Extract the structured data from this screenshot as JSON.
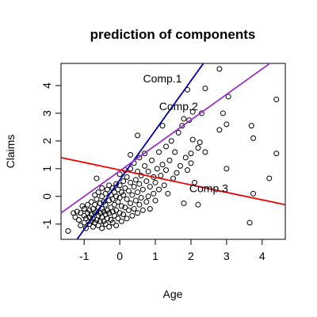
{
  "chart_data": {
    "type": "scatter",
    "title": "prediction of components",
    "xlabel": "Age",
    "ylabel": "Claims",
    "xlim": [
      -1.65,
      4.65
    ],
    "ylim": [
      -1.55,
      4.8
    ],
    "xticks": [
      "-1",
      "0",
      "1",
      "2",
      "3",
      "4"
    ],
    "yticks": [
      "-1",
      "0",
      "1",
      "2",
      "3",
      "4"
    ],
    "grid": false,
    "points": [
      [
        -1.45,
        -1.25
      ],
      [
        -1.3,
        -0.6
      ],
      [
        -1.25,
        -0.75
      ],
      [
        -1.2,
        -0.55
      ],
      [
        -1.15,
        -0.85
      ],
      [
        -1.1,
        -1.05
      ],
      [
        -1.1,
        -0.6
      ],
      [
        -1.05,
        -0.35
      ],
      [
        -1.0,
        -0.95
      ],
      [
        -1.0,
        -0.7
      ],
      [
        -1.0,
        -0.45
      ],
      [
        -0.95,
        -0.8
      ],
      [
        -0.95,
        -1.15
      ],
      [
        -0.9,
        -0.6
      ],
      [
        -0.9,
        -0.3
      ],
      [
        -0.85,
        -1.0
      ],
      [
        -0.85,
        -0.75
      ],
      [
        -0.85,
        -0.5
      ],
      [
        -0.8,
        -0.9
      ],
      [
        -0.8,
        -0.65
      ],
      [
        -0.8,
        -0.2
      ],
      [
        -0.75,
        -1.1
      ],
      [
        -0.75,
        -0.8
      ],
      [
        -0.75,
        -0.45
      ],
      [
        -0.7,
        -0.95
      ],
      [
        -0.7,
        -0.6
      ],
      [
        -0.7,
        -0.3
      ],
      [
        -0.7,
        0.05
      ],
      [
        -0.65,
        -0.85
      ],
      [
        -0.65,
        -0.55
      ],
      [
        -0.65,
        -0.1
      ],
      [
        -0.6,
        -1.05
      ],
      [
        -0.6,
        -0.7
      ],
      [
        -0.6,
        -0.4
      ],
      [
        -0.6,
        0.15
      ],
      [
        -0.55,
        -0.9
      ],
      [
        -0.55,
        -0.6
      ],
      [
        -0.55,
        -0.25
      ],
      [
        -0.5,
        -1.15
      ],
      [
        -0.5,
        -0.75
      ],
      [
        -0.5,
        -0.45
      ],
      [
        -0.5,
        0.0
      ],
      [
        -0.5,
        0.3
      ],
      [
        -0.45,
        -0.9
      ],
      [
        -0.45,
        -0.55
      ],
      [
        -0.45,
        -0.2
      ],
      [
        -0.4,
        -1.0
      ],
      [
        -0.4,
        -0.65
      ],
      [
        -0.4,
        -0.3
      ],
      [
        -0.4,
        0.1
      ],
      [
        -0.35,
        -0.8
      ],
      [
        -0.35,
        -0.5
      ],
      [
        -0.35,
        0.25
      ],
      [
        -0.3,
        -1.1
      ],
      [
        -0.3,
        -0.6
      ],
      [
        -0.3,
        -0.15
      ],
      [
        -0.3,
        0.4
      ],
      [
        -0.25,
        -0.85
      ],
      [
        -0.25,
        -0.4
      ],
      [
        -0.25,
        0.05
      ],
      [
        -0.2,
        -0.95
      ],
      [
        -0.2,
        -0.55
      ],
      [
        -0.2,
        -0.1
      ],
      [
        -0.2,
        0.3
      ],
      [
        -0.15,
        -0.7
      ],
      [
        -0.15,
        -0.3
      ],
      [
        -0.15,
        0.15
      ],
      [
        -0.1,
        -1.05
      ],
      [
        -0.1,
        -0.5
      ],
      [
        -0.1,
        0.0
      ],
      [
        -0.1,
        0.45
      ],
      [
        -0.05,
        -0.8
      ],
      [
        -0.05,
        -0.2
      ],
      [
        -0.05,
        0.25
      ],
      [
        0.0,
        -0.6
      ],
      [
        0.0,
        -0.05
      ],
      [
        0.0,
        0.4
      ],
      [
        0.0,
        0.8
      ],
      [
        0.05,
        -0.9
      ],
      [
        0.05,
        -0.35
      ],
      [
        0.05,
        0.15
      ],
      [
        0.1,
        -0.65
      ],
      [
        0.1,
        0.05
      ],
      [
        0.1,
        0.55
      ],
      [
        0.15,
        -0.4
      ],
      [
        0.15,
        0.3
      ],
      [
        0.2,
        -0.8
      ],
      [
        0.2,
        -0.1
      ],
      [
        0.2,
        0.7
      ],
      [
        0.25,
        -0.5
      ],
      [
        0.25,
        0.2
      ],
      [
        0.3,
        -0.25
      ],
      [
        0.3,
        0.5
      ],
      [
        0.3,
        1.0
      ],
      [
        0.35,
        -0.7
      ],
      [
        0.35,
        0.05
      ],
      [
        0.4,
        -0.45
      ],
      [
        0.4,
        0.35
      ],
      [
        0.4,
        1.2
      ],
      [
        0.45,
        -0.15
      ],
      [
        0.45,
        0.6
      ],
      [
        0.5,
        -0.6
      ],
      [
        0.5,
        0.15
      ],
      [
        0.5,
        0.9
      ],
      [
        0.55,
        -0.3
      ],
      [
        0.55,
        0.45
      ],
      [
        0.55,
        1.4
      ],
      [
        0.6,
        -0.05
      ],
      [
        0.6,
        0.75
      ],
      [
        0.65,
        -0.5
      ],
      [
        0.65,
        0.25
      ],
      [
        0.7,
        1.1
      ],
      [
        0.75,
        -0.2
      ],
      [
        0.75,
        0.55
      ],
      [
        0.8,
        0.0
      ],
      [
        0.8,
        0.9
      ],
      [
        0.85,
        -0.45
      ],
      [
        0.85,
        0.35
      ],
      [
        0.9,
        1.3
      ],
      [
        0.95,
        0.1
      ],
      [
        0.95,
        0.7
      ],
      [
        1.0,
        -0.15
      ],
      [
        1.0,
        0.5
      ],
      [
        1.05,
        1.0
      ],
      [
        1.1,
        0.25
      ],
      [
        1.1,
        1.6
      ],
      [
        1.15,
        0.75
      ],
      [
        1.2,
        1.15
      ],
      [
        1.25,
        0.4
      ],
      [
        1.3,
        1.8
      ],
      [
        1.3,
        0.95
      ],
      [
        1.35,
        0.1
      ],
      [
        1.4,
        1.3
      ],
      [
        1.45,
        2.0
      ],
      [
        1.5,
        0.65
      ],
      [
        1.55,
        1.6
      ],
      [
        1.6,
        0.85
      ],
      [
        1.65,
        2.3
      ],
      [
        1.7,
        1.1
      ],
      [
        1.75,
        2.55
      ],
      [
        1.8,
        -0.25
      ],
      [
        1.8,
        2.8
      ],
      [
        1.85,
        1.4
      ],
      [
        1.9,
        0.95
      ],
      [
        1.95,
        2.75
      ],
      [
        2.0,
        1.2
      ],
      [
        2.0,
        1.55
      ],
      [
        2.05,
        2.05
      ],
      [
        2.05,
        3.05
      ],
      [
        2.1,
        0.5
      ],
      [
        2.2,
        1.75
      ],
      [
        2.2,
        -0.3
      ],
      [
        2.25,
        1.95
      ],
      [
        2.3,
        3.0
      ],
      [
        2.4,
        3.9
      ],
      [
        2.4,
        1.6
      ],
      [
        2.8,
        2.4
      ],
      [
        2.9,
        3.0
      ],
      [
        3.0,
        2.6
      ],
      [
        3.05,
        3.6
      ],
      [
        3.0,
        1.0
      ],
      [
        2.8,
        4.6
      ],
      [
        3.7,
        2.55
      ],
      [
        3.75,
        2.1
      ],
      [
        3.75,
        0.1
      ],
      [
        3.65,
        -0.95
      ],
      [
        4.2,
        0.65
      ],
      [
        4.4,
        3.5
      ],
      [
        4.4,
        1.55
      ],
      [
        1.9,
        3.85
      ],
      [
        0.5,
        2.2
      ],
      [
        0.3,
        1.5
      ],
      [
        -0.65,
        0.65
      ],
      [
        0.15,
        0.95
      ],
      [
        0.7,
        1.55
      ],
      [
        1.2,
        2.55
      ]
    ],
    "lines": [
      {
        "label": "Comp.1",
        "color": "#0000aa",
        "from": [
          -1.2,
          -1.55
        ],
        "to": [
          2.35,
          4.8
        ],
        "label_at": [
          1.2,
          4.25
        ]
      },
      {
        "label": "Comp.2",
        "color": "#9933cc",
        "from": [
          -1.65,
          -0.6
        ],
        "to": [
          4.65,
          5.2
        ],
        "label_at": [
          1.65,
          3.25
        ]
      },
      {
        "label": "Comp.3",
        "color": "#ee0000",
        "from": [
          -1.65,
          1.4
        ],
        "to": [
          4.65,
          -0.3
        ],
        "label_at": [
          2.5,
          0.3
        ]
      }
    ],
    "line_labels": [
      "Comp.1",
      "Comp.2",
      "Comp.3"
    ]
  }
}
